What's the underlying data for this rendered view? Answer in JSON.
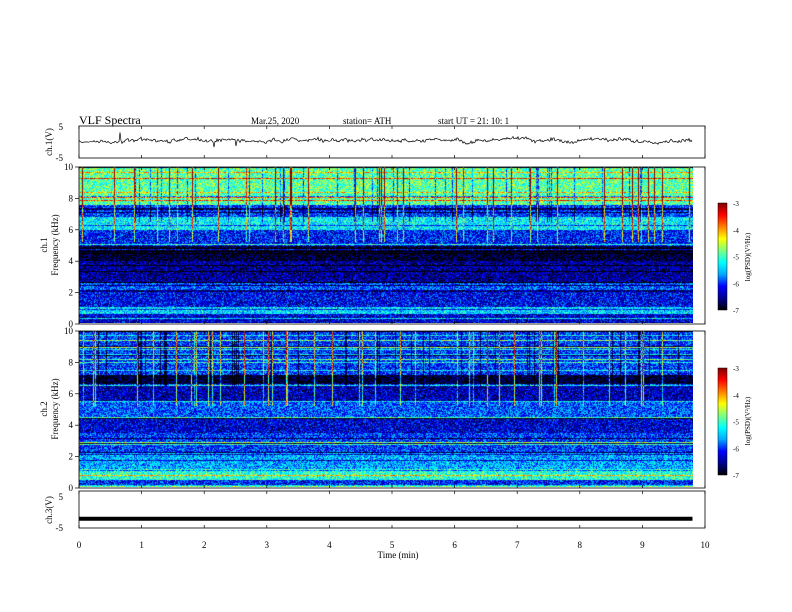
{
  "header": {
    "title": "VLF  Spectra",
    "date": "Mar.25, 2020",
    "station": "station= ATH",
    "start": "start  UT  =    21: 10: 1"
  },
  "colors": {
    "jet": [
      "#000000",
      "#00008f",
      "#0000ff",
      "#00aaff",
      "#00ffff",
      "#7fff7f",
      "#ffff00",
      "#ff7f00",
      "#ff0000",
      "#7f0000"
    ]
  },
  "chart_data": [
    {
      "type": "line",
      "ylabel": "ch.1(V)",
      "ylim": [
        -5,
        5
      ],
      "yticks": [
        "5",
        "-5"
      ],
      "x_range": [
        0,
        9.8
      ],
      "approx_mean": 0.5,
      "noise_amplitude": 0.8
    },
    {
      "type": "heatmap",
      "ylabel": "ch.1\nFrequency  (kHz)",
      "ylim": [
        0,
        10
      ],
      "yticks": [
        "0",
        "2",
        "4",
        "6",
        "8",
        "10"
      ],
      "x_range": [
        0,
        9.8
      ],
      "bands_log_psd": [
        {
          "f": [
            0,
            0.6
          ],
          "level": -6.3
        },
        {
          "f": [
            0.6,
            1.0
          ],
          "level": -5.4
        },
        {
          "f": [
            1.0,
            2.0
          ],
          "level": -6.2
        },
        {
          "f": [
            2.0,
            2.6
          ],
          "level": -5.9
        },
        {
          "f": [
            2.6,
            4.0
          ],
          "level": -6.5
        },
        {
          "f": [
            4.0,
            5.0
          ],
          "level": -6.9
        },
        {
          "f": [
            5.0,
            6.0
          ],
          "level": -6.1
        },
        {
          "f": [
            6.0,
            6.8
          ],
          "level": -5.3
        },
        {
          "f": [
            6.8,
            7.6
          ],
          "level": -6.0
        },
        {
          "f": [
            7.6,
            10.0
          ],
          "level": -4.9
        }
      ],
      "colorbar": {
        "label": "log(PSD)(V²/Hz)",
        "range": [
          -7,
          -3
        ],
        "ticks": [
          "-3",
          "-4",
          "-5",
          "-6",
          "-7"
        ]
      }
    },
    {
      "type": "heatmap",
      "ylabel": "ch.2\nFrequency  (kHz)",
      "ylim": [
        0,
        10
      ],
      "yticks": [
        "0",
        "2",
        "4",
        "6",
        "8",
        "10"
      ],
      "x_range": [
        0,
        9.8
      ],
      "bands_log_psd": [
        {
          "f": [
            0,
            0.5
          ],
          "level": -6.1
        },
        {
          "f": [
            0.5,
            1.2
          ],
          "level": -5.1
        },
        {
          "f": [
            1.2,
            2.2
          ],
          "level": -5.6
        },
        {
          "f": [
            2.2,
            3.5
          ],
          "level": -6.0
        },
        {
          "f": [
            3.5,
            4.5
          ],
          "level": -6.3
        },
        {
          "f": [
            4.5,
            5.5
          ],
          "level": -5.9
        },
        {
          "f": [
            5.5,
            6.6
          ],
          "level": -6.4
        },
        {
          "f": [
            6.6,
            7.2
          ],
          "level": -6.9
        },
        {
          "f": [
            7.2,
            10.0
          ],
          "level": -6.0
        }
      ],
      "colorbar": {
        "label": "log(PSD)(V²/Hz)",
        "range": [
          -7,
          -3
        ],
        "ticks": [
          "-3",
          "-4",
          "-5",
          "-6",
          "-7"
        ]
      }
    },
    {
      "type": "line",
      "ylabel": "ch.3(V)",
      "ylim": [
        -5,
        5
      ],
      "yticks": [
        "5",
        "-5"
      ],
      "x_range": [
        0,
        9.8
      ],
      "approx_mean": -2.5
    }
  ],
  "xaxis": {
    "label": "Time  (min)",
    "ticks": [
      "0",
      "1",
      "2",
      "3",
      "4",
      "5",
      "6",
      "7",
      "8",
      "9",
      "10"
    ],
    "range": [
      0,
      10
    ]
  }
}
